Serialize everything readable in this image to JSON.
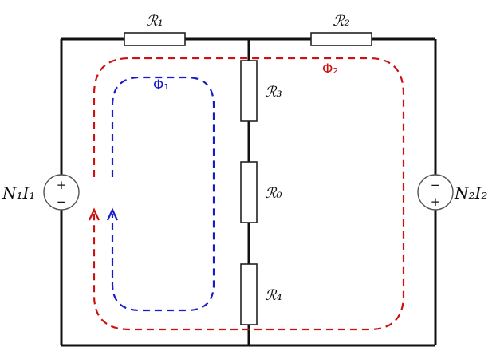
{
  "resistors": {
    "r1": "ℛ₁",
    "r2": "ℛ₂",
    "r3": "ℛ₃",
    "r0": "ℛ₀",
    "r4": "ℛ₄"
  },
  "sources": {
    "left": {
      "label": "N₁I₁",
      "top_sign": "+",
      "bottom_sign": "−"
    },
    "right": {
      "label": "N₂I₂",
      "top_sign": "−",
      "bottom_sign": "+"
    }
  },
  "fluxes": {
    "phi1": {
      "label": "Φ₁",
      "color": "#1a1acc"
    },
    "phi2": {
      "label": "Φ₂",
      "color": "#cc1111"
    }
  }
}
